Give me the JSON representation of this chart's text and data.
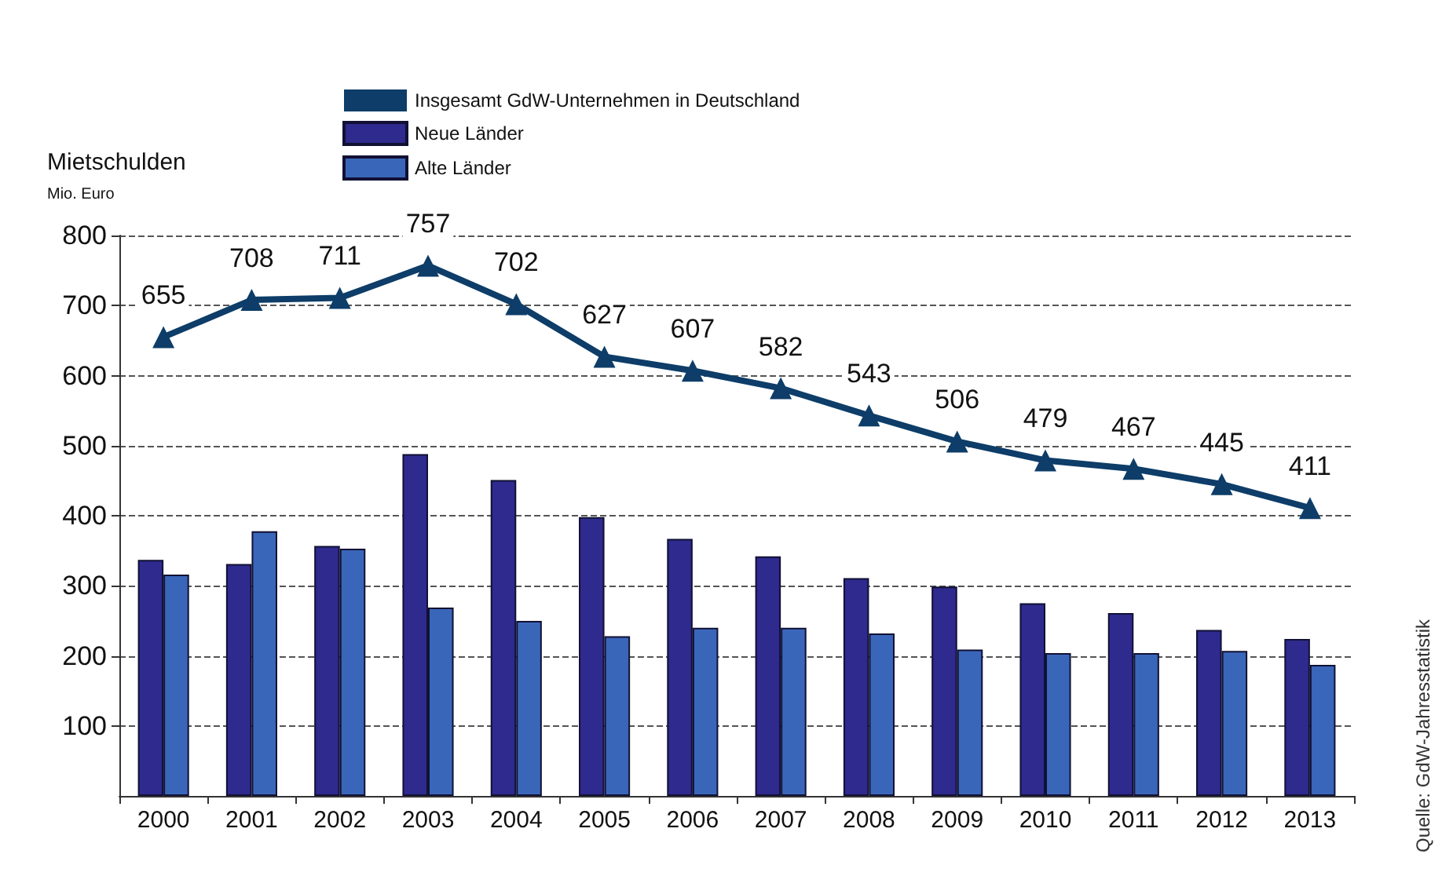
{
  "chart_data": {
    "type": "bar",
    "ylabel": "Mietschulden",
    "subtitle": "Mio. Euro",
    "categories": [
      "2000",
      "2001",
      "2002",
      "2003",
      "2004",
      "2005",
      "2006",
      "2007",
      "2008",
      "2009",
      "2010",
      "2011",
      "2012",
      "2013"
    ],
    "series": [
      {
        "name": "Insgesamt GdW-Unternehmen in Deutschland",
        "type": "line",
        "color": "#0d3d68",
        "values": [
          655,
          708,
          711,
          757,
          702,
          627,
          607,
          582,
          543,
          506,
          479,
          467,
          445,
          411
        ],
        "value_labels": [
          "655",
          "708",
          "711",
          "757",
          "702",
          "627",
          "607",
          "582",
          "543",
          "506",
          "479",
          "467",
          "445",
          "411"
        ]
      },
      {
        "name": "Neue Länder",
        "color": "#2e2a8e",
        "values": [
          337,
          331,
          357,
          488,
          451,
          398,
          367,
          342,
          311,
          299,
          275,
          261,
          237,
          224
        ]
      },
      {
        "name": "Alte Länder",
        "color": "#3a66ba",
        "values": [
          316,
          378,
          353,
          269,
          250,
          228,
          240,
          240,
          232,
          209,
          204,
          204,
          207,
          187
        ]
      }
    ],
    "ylim": [
      0,
      800
    ],
    "yticks": [
      100,
      200,
      300,
      400,
      500,
      600,
      700,
      800
    ],
    "grid": "y",
    "legend": "top",
    "marker": "triangle",
    "line_style": "solid",
    "annotations": [
      "Quelle: GdW-Jahresstatistik"
    ]
  }
}
